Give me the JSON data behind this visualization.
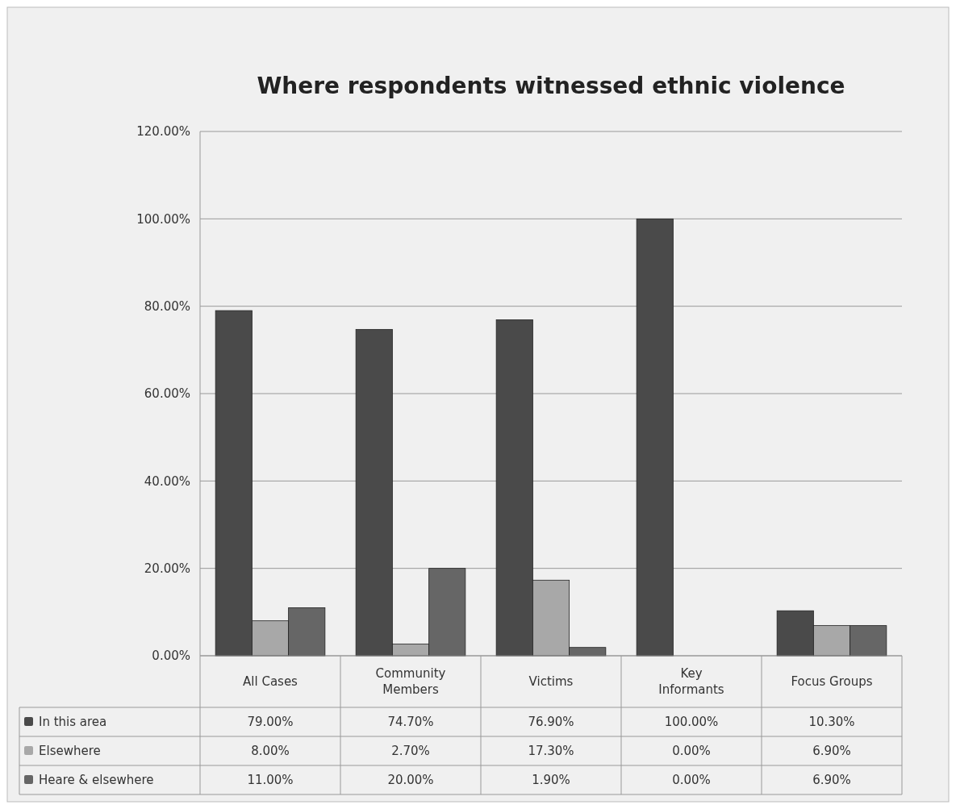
{
  "chart_data": {
    "type": "bar",
    "title": "Where respondents witnessed ethnic violence",
    "categories": [
      "All Cases",
      "Community Members",
      "Victims",
      "Key Informants",
      "Focus Groups"
    ],
    "series": [
      {
        "name": "In this area",
        "color": "#4a4a4a",
        "values": [
          79,
          74.7,
          76.9,
          100,
          10.3
        ],
        "value_labels": [
          "79.00%",
          "74.70%",
          "76.90%",
          "100.00%",
          "10.30%"
        ]
      },
      {
        "name": "Elsewhere",
        "color": "#a8a8a8",
        "values": [
          8,
          2.7,
          17.3,
          0,
          6.9
        ],
        "value_labels": [
          "8.00%",
          "2.70%",
          "17.30%",
          "0.00%",
          "6.90%"
        ]
      },
      {
        "name": "Heare & elsewhere",
        "color": "#666666",
        "values": [
          11,
          20,
          1.9,
          0,
          6.9
        ],
        "value_labels": [
          "11.00%",
          "20.00%",
          "1.90%",
          "0.00%",
          "6.90%"
        ]
      }
    ],
    "ylim": [
      0,
      120
    ],
    "yticks": [
      {
        "value": 0,
        "label": "0.00%"
      },
      {
        "value": 20,
        "label": "20.00%"
      },
      {
        "value": 40,
        "label": "40.00%"
      },
      {
        "value": 60,
        "label": "60.00%"
      },
      {
        "value": 80,
        "label": "80.00%"
      },
      {
        "value": 100,
        "label": "100.00%"
      },
      {
        "value": 120,
        "label": "120.00%"
      }
    ],
    "grid": "y",
    "legend": "bottom left"
  }
}
